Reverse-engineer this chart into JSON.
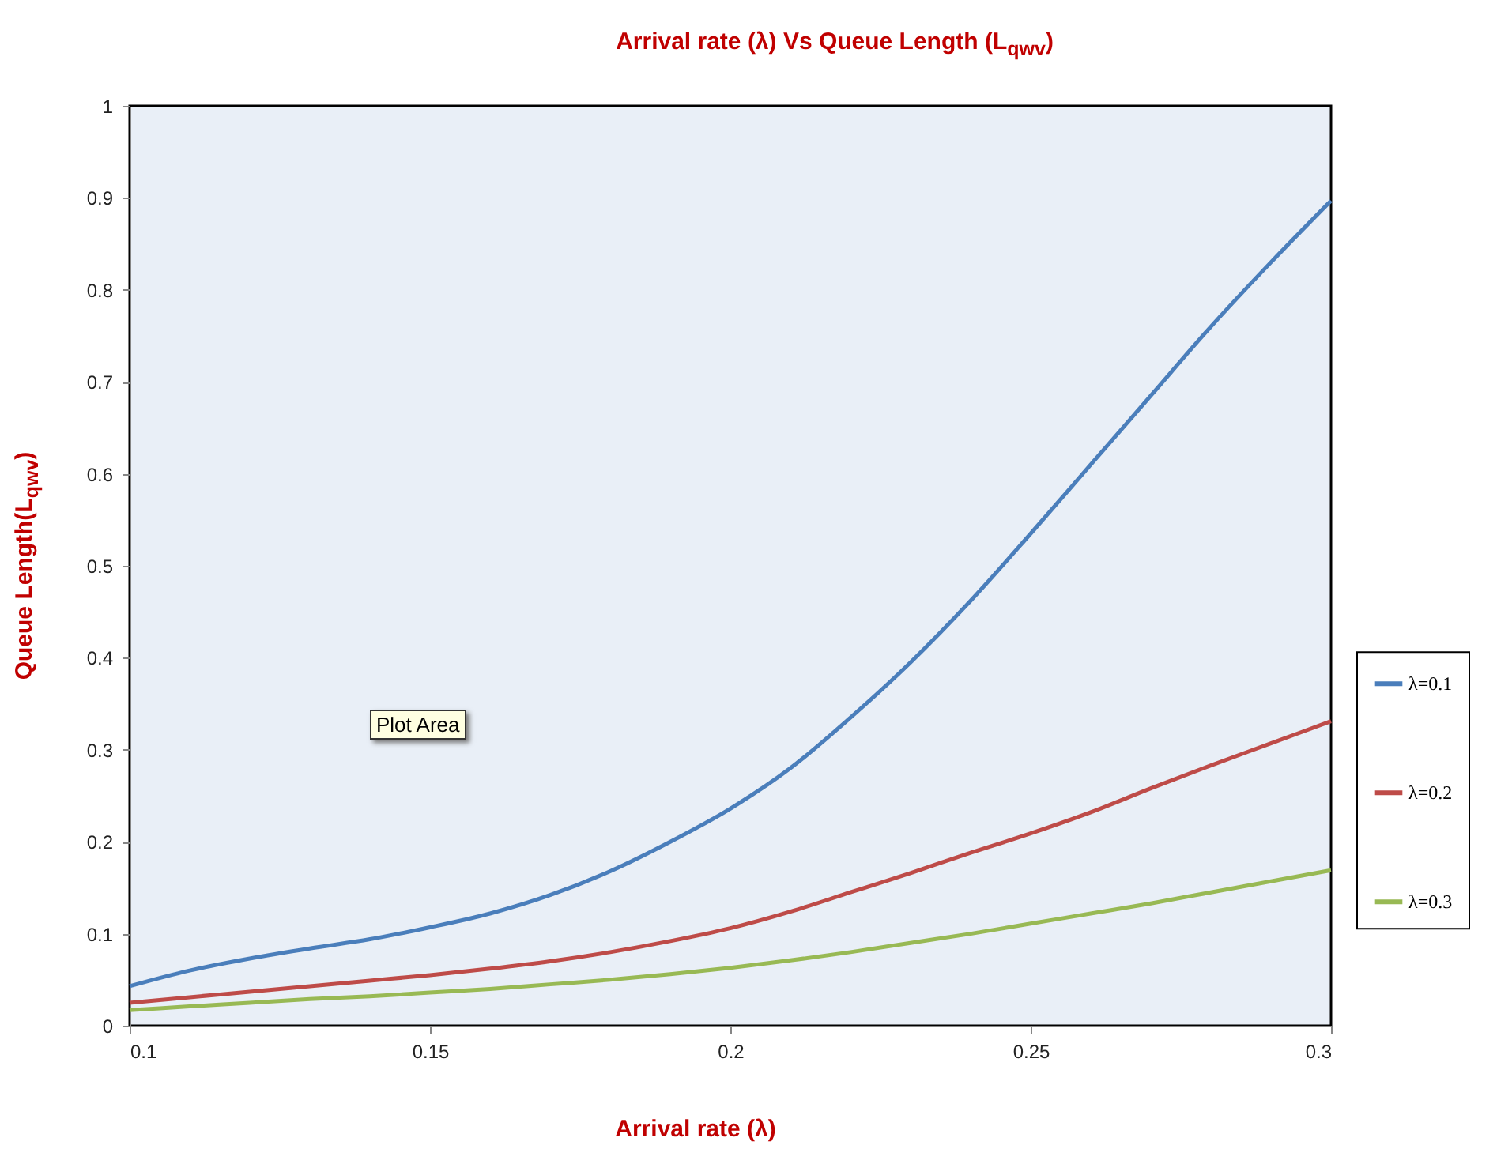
{
  "chart_data": {
    "type": "line",
    "title": "Arrival rate (λ) Vs Queue Length (L$_{qwv}$)",
    "xlabel": "Arrival rate (λ)",
    "ylabel": "Queue Length(L$_{qwv}$)",
    "annotations": [
      "Plot Area"
    ],
    "x": [
      0.1,
      0.11,
      0.12,
      0.13,
      0.14,
      0.15,
      0.16,
      0.17,
      0.18,
      0.19,
      0.2,
      0.21,
      0.22,
      0.23,
      0.24,
      0.25,
      0.26,
      0.27,
      0.28,
      0.29,
      0.3
    ],
    "series": [
      {
        "name": "λ=0.1",
        "color": "#4a7ebb",
        "values": [
          0.043,
          0.06,
          0.073,
          0.084,
          0.094,
          0.107,
          0.122,
          0.142,
          0.168,
          0.2,
          0.236,
          0.28,
          0.335,
          0.395,
          0.462,
          0.535,
          0.61,
          0.685,
          0.76,
          0.83,
          0.897
        ]
      },
      {
        "name": "λ=0.2",
        "color": "#be4b48",
        "values": [
          0.025,
          0.031,
          0.037,
          0.043,
          0.049,
          0.055,
          0.062,
          0.07,
          0.08,
          0.092,
          0.106,
          0.124,
          0.145,
          0.166,
          0.188,
          0.209,
          0.232,
          0.258,
          0.283,
          0.307,
          0.331
        ]
      },
      {
        "name": "λ=0.3",
        "color": "#98b954",
        "values": [
          0.017,
          0.021,
          0.025,
          0.029,
          0.032,
          0.036,
          0.04,
          0.045,
          0.05,
          0.056,
          0.063,
          0.071,
          0.08,
          0.09,
          0.1,
          0.111,
          0.122,
          0.133,
          0.145,
          0.157,
          0.169
        ]
      }
    ],
    "xlim": [
      0.1,
      0.3
    ],
    "xticks": [
      0.1,
      0.15,
      0.2,
      0.25,
      0.3
    ],
    "ylim": [
      0,
      1
    ],
    "yticks": [
      0,
      0.1,
      0.2,
      0.3,
      0.4,
      0.5,
      0.6,
      0.7,
      0.8,
      0.9,
      1
    ],
    "legend": "right"
  }
}
